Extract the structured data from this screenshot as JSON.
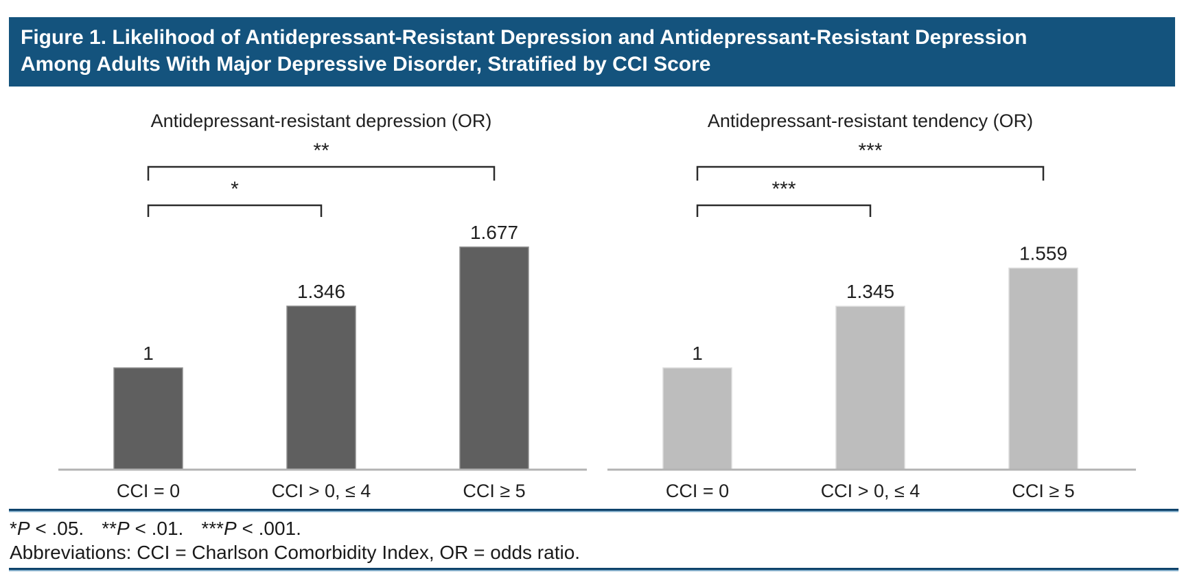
{
  "header": {
    "title_line1": "Figure 1. Likelihood of Antidepressant-Resistant Depression and Antidepressant-Resistant Depression",
    "title_line2": "Among Adults With Major Depressive Disorder, Stratified by CCI Score"
  },
  "chart_data": [
    {
      "type": "bar",
      "title": "Antidepressant-resistant depression (OR)",
      "categories": [
        "CCI = 0",
        "CCI > 0, ≤ 4",
        "CCI ≥ 5"
      ],
      "values": [
        1,
        1.346,
        1.677
      ],
      "value_labels": [
        "1",
        "1.346",
        "1.677"
      ],
      "bar_color": "#5F5F5F",
      "bar_edge_color": "#8F8F8F",
      "brackets": [
        {
          "between": [
            0,
            2
          ],
          "label": "**"
        },
        {
          "between": [
            0,
            1
          ],
          "label": "*"
        }
      ],
      "xlabel": "",
      "ylabel": "",
      "grid": false,
      "legend": false
    },
    {
      "type": "bar",
      "title": "Antidepressant-resistant tendency (OR)",
      "categories": [
        "CCI = 0",
        "CCI > 0, ≤ 4",
        "CCI ≥ 5"
      ],
      "values": [
        1,
        1.345,
        1.559
      ],
      "value_labels": [
        "1",
        "1.345",
        "1.559"
      ],
      "bar_color": "#BDBDBD",
      "bar_edge_color": "#DCDCDC",
      "brackets": [
        {
          "between": [
            0,
            2
          ],
          "label": "***"
        },
        {
          "between": [
            0,
            1
          ],
          "label": "***"
        }
      ],
      "xlabel": "",
      "ylabel": "",
      "grid": false,
      "legend": false
    }
  ],
  "footnotes": {
    "sig": [
      {
        "stars": "*",
        "p": "P",
        "rest": " < .05."
      },
      {
        "stars": "**",
        "p": "P",
        "rest": " < .01."
      },
      {
        "stars": "***",
        "p": "P",
        "rest": " < .001."
      }
    ],
    "abbreviations": "Abbreviations: CCI = Charlson Comorbidity Index, OR = odds ratio."
  },
  "colors": {
    "header_bg": "#14537D",
    "header_text": "#FFFFFF",
    "axis_line": "#B3B3B3",
    "bracket_line": "#2B2B2B",
    "text": "#1F1F1F",
    "rule_dark": "#0E436B",
    "rule_light": "#86AFCB"
  }
}
